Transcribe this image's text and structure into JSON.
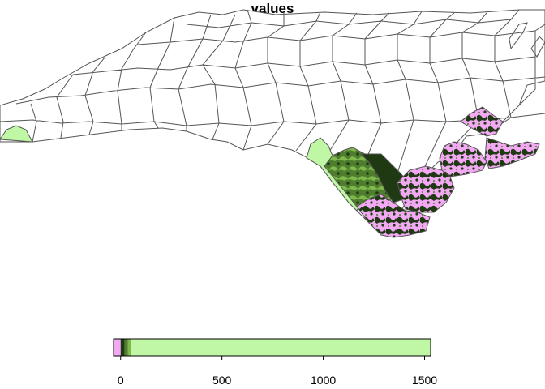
{
  "title": "values",
  "legend": {
    "ticks": [
      {
        "value": 0,
        "label": "0"
      },
      {
        "value": 500,
        "label": "500"
      },
      {
        "value": 1000,
        "label": "1000"
      },
      {
        "value": 1500,
        "label": "1500"
      }
    ],
    "range": [
      -35,
      1530
    ],
    "bins": [
      {
        "from": -35,
        "to": 0,
        "color": "#f2a8f2"
      },
      {
        "from": 0,
        "to": 20,
        "color": "#1f3a13"
      },
      {
        "from": 20,
        "to": 35,
        "color": "#4e7d2e"
      },
      {
        "from": 35,
        "to": 50,
        "color": "#7fb84c"
      },
      {
        "from": 50,
        "to": 1530,
        "color": "#bff7a5"
      }
    ]
  },
  "colors": {
    "negative": "#f2a8f2",
    "dark": "#1f3a13",
    "mid": "#4e7d2e",
    "light": "#7fb84c",
    "pale": "#bff7a5",
    "border": "#555555"
  }
}
